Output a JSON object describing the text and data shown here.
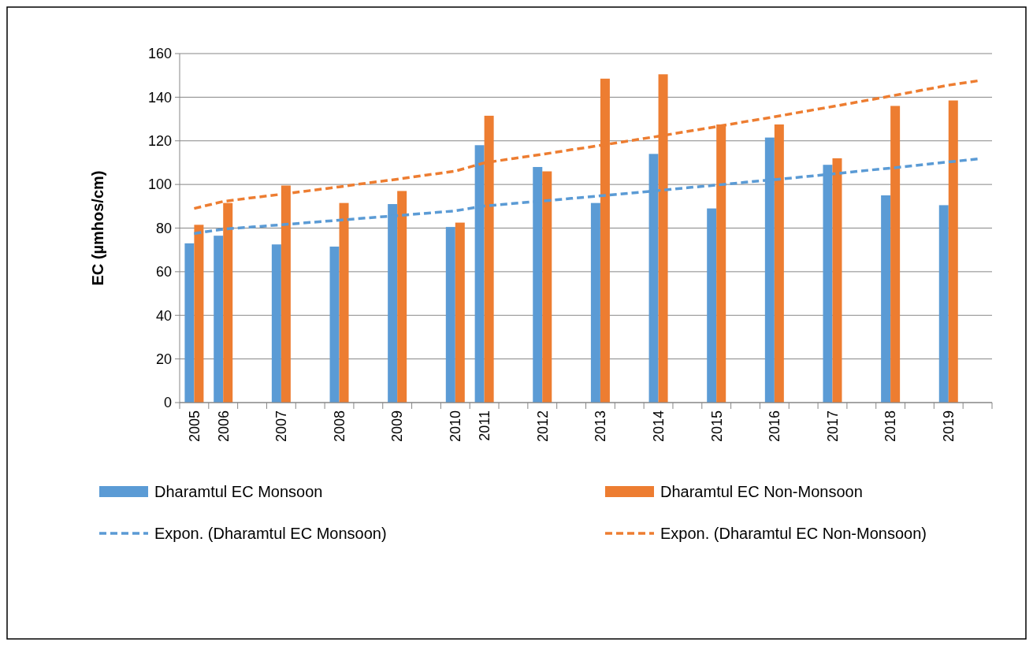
{
  "chart_data": {
    "type": "bar",
    "ylabel": "EC (µmhos/cm)",
    "categories": [
      "2005",
      "2006",
      null,
      "2007",
      null,
      "2008",
      null,
      "2009",
      null,
      "2010",
      "2011",
      null,
      "2012",
      null,
      "2013",
      null,
      "2014",
      null,
      "2015",
      null,
      "2016",
      null,
      "2017",
      null,
      "2018",
      null,
      "2019",
      null
    ],
    "series": [
      {
        "name": "Dharamtul EC Monsoon",
        "color": "#5b9bd5",
        "values": [
          73,
          76.5,
          null,
          72.5,
          null,
          71.5,
          null,
          91,
          null,
          80.5,
          118,
          null,
          108,
          null,
          91.5,
          null,
          114,
          null,
          89,
          null,
          121.5,
          null,
          109,
          null,
          95,
          null,
          90.5,
          null
        ]
      },
      {
        "name": "Dharamtul EC Non-Monsoon",
        "color": "#ed7d31",
        "values": [
          81.5,
          91.5,
          null,
          99.5,
          null,
          91.5,
          null,
          97,
          null,
          82.5,
          131.5,
          null,
          106,
          null,
          148.5,
          null,
          150.5,
          null,
          127.5,
          null,
          127.5,
          null,
          112,
          null,
          136,
          null,
          138.5,
          null
        ]
      },
      {
        "name": "Expon. (Dharamtul EC Monsoon)",
        "type": "line",
        "line_style": "dashed",
        "color": "#5b9bd5",
        "values": [
          77.5,
          79.5,
          80.5,
          81.5,
          82.6,
          83.6,
          84.7,
          85.7,
          86.8,
          87.9,
          90.1,
          91.3,
          92.4,
          93.6,
          94.8,
          96,
          97.2,
          98.5,
          99.7,
          101,
          102.2,
          103.5,
          104.8,
          106.2,
          107.5,
          108.9,
          110.3,
          111.7
        ]
      },
      {
        "name": "Expon. (Dharamtul EC Non-Monsoon)",
        "type": "line",
        "line_style": "dashed",
        "color": "#ed7d31",
        "values": [
          89,
          92.2,
          93.9,
          95.5,
          97.2,
          98.9,
          100.7,
          102.4,
          104.3,
          106.1,
          109.9,
          111.9,
          113.8,
          115.9,
          117.9,
          120,
          122.1,
          124.3,
          126.5,
          128.8,
          131,
          133.4,
          135.7,
          138.1,
          140.5,
          143,
          145.5,
          147.5
        ]
      }
    ],
    "ylim": [
      0,
      160
    ],
    "yticks": [
      0,
      20,
      40,
      60,
      80,
      100,
      120,
      140,
      160
    ],
    "grid": "y",
    "legend": "bottom"
  }
}
